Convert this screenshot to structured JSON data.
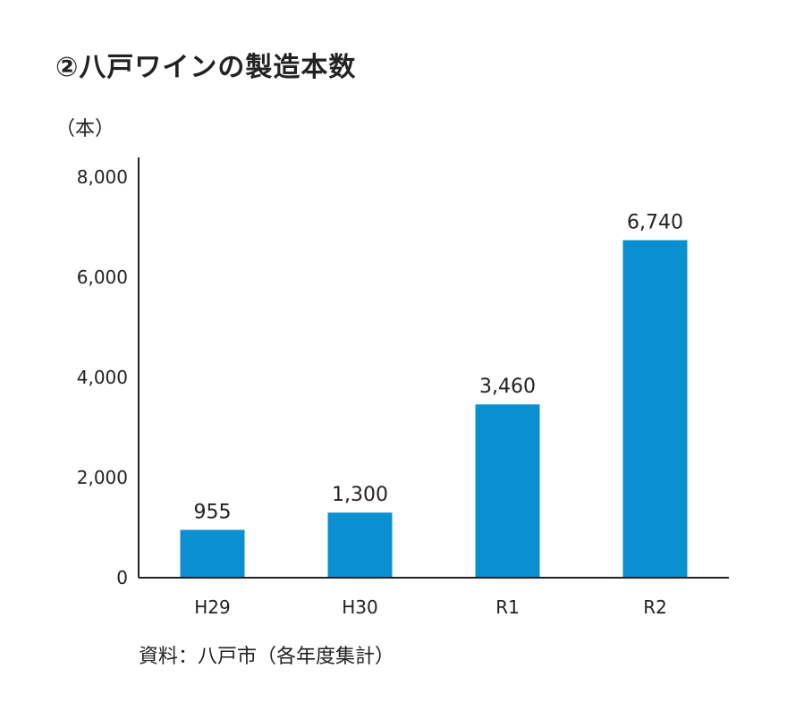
{
  "title": "②八戸ワインの製造本数",
  "unit": "（本）",
  "source": "資料：八戸市（各年度集計）",
  "colors": {
    "bar": "#0a8fd0",
    "axis": "#222222"
  },
  "chart_data": {
    "type": "bar",
    "title": "②八戸ワインの製造本数",
    "ylabel": "（本）",
    "xlabel": "",
    "categories": [
      "H29",
      "H30",
      "R1",
      "R2"
    ],
    "values": [
      955,
      1300,
      3460,
      6740
    ],
    "value_labels": [
      "955",
      "1,300",
      "3,460",
      "6,740"
    ],
    "ylim": [
      0,
      8000
    ],
    "yticks": [
      0,
      2000,
      4000,
      6000,
      8000
    ],
    "ytick_labels": [
      "0",
      "2,000",
      "4,000",
      "6,000",
      "8,000"
    ],
    "grid": false,
    "legend": "none"
  }
}
